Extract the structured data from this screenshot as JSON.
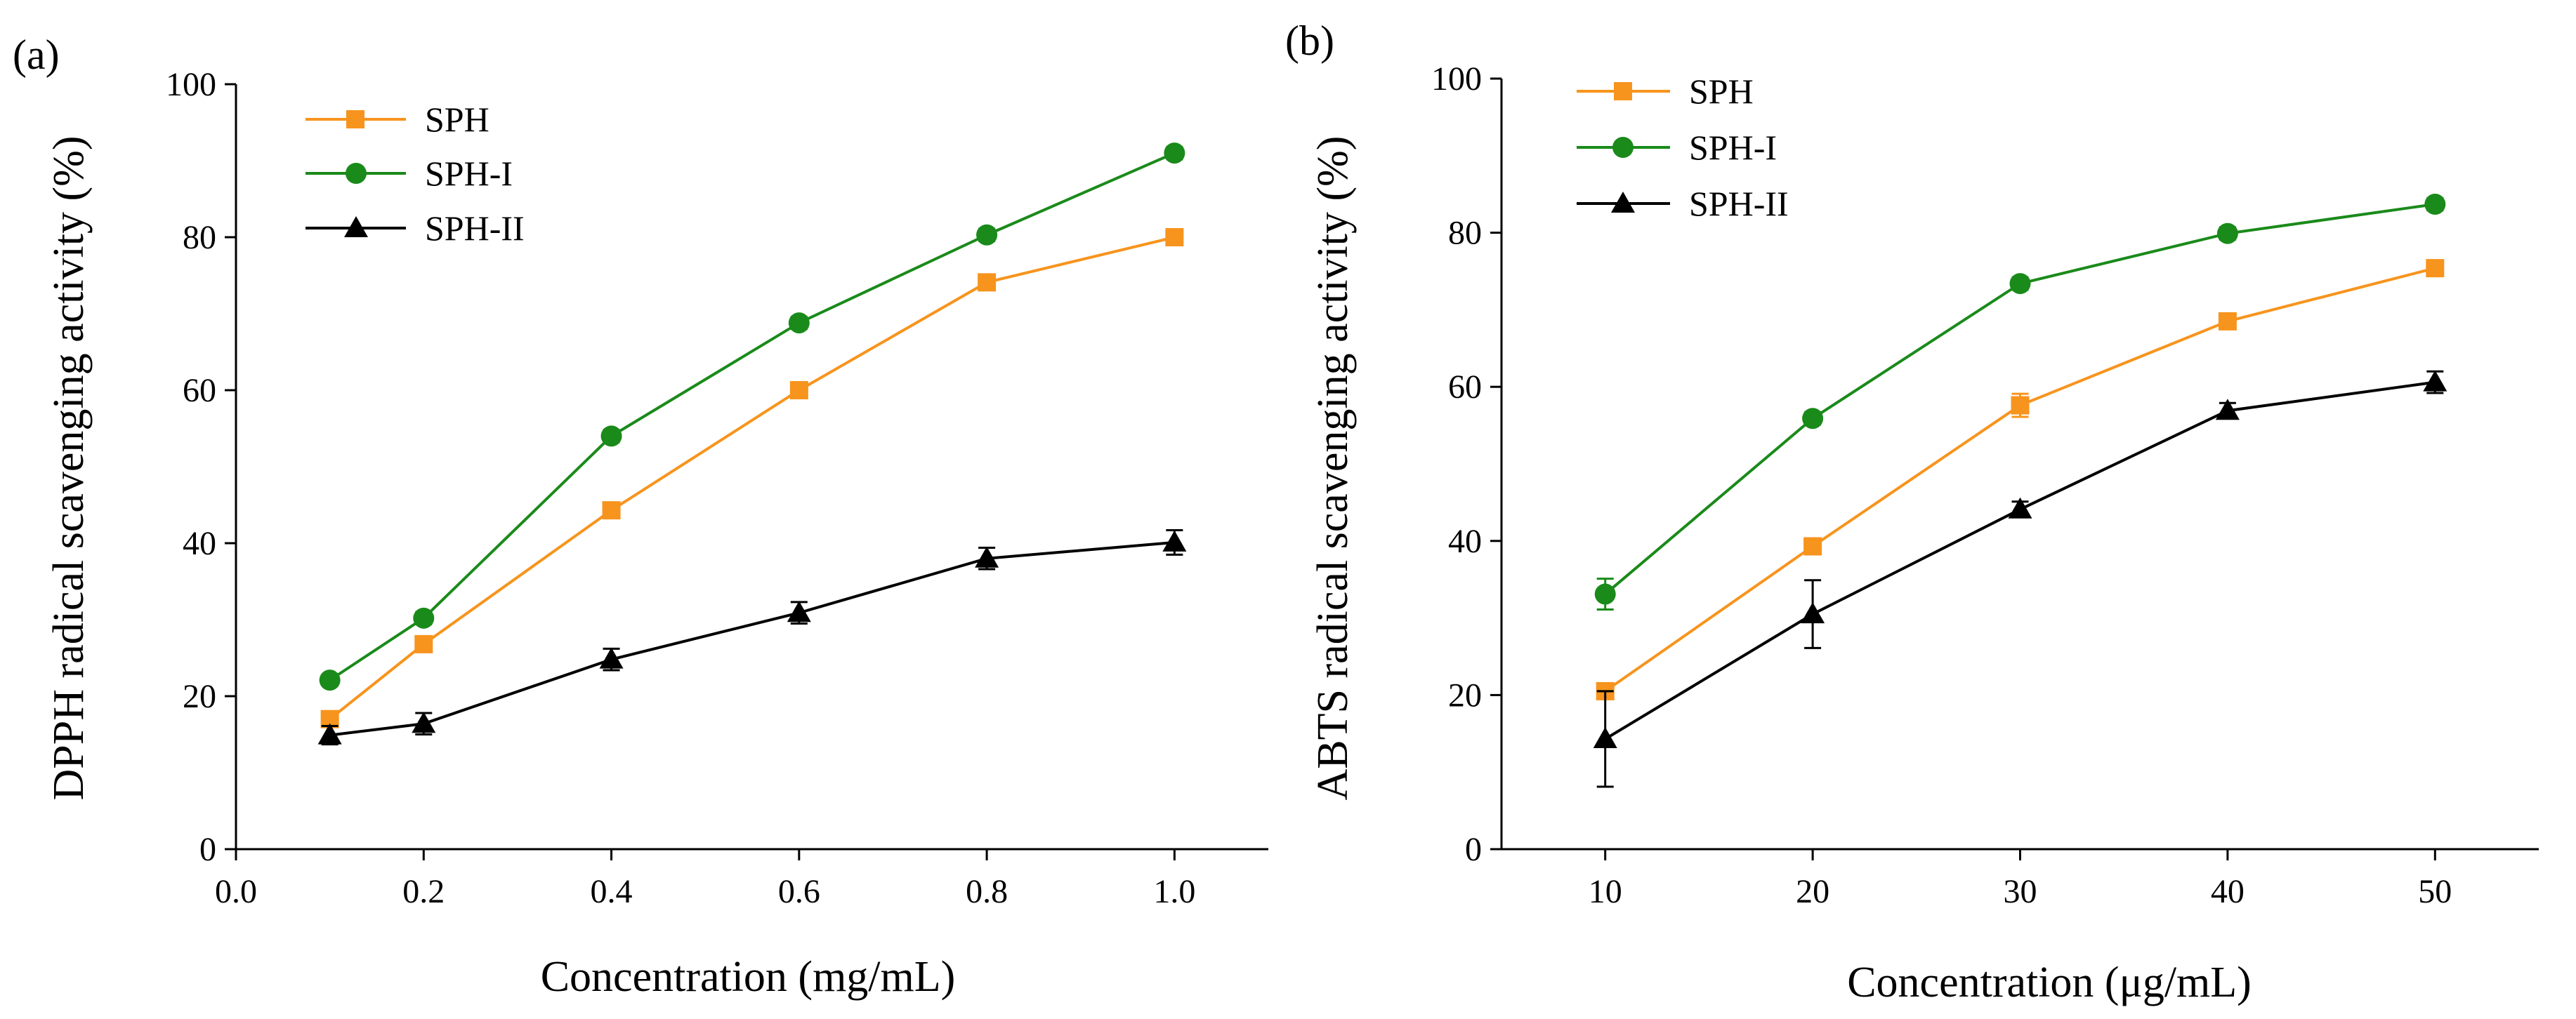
{
  "chart_data": [
    {
      "panel_label": "(a)",
      "type": "line",
      "xlabel": "Concentration (mg/mL)",
      "ylabel": "DPPH radical scavenging activity (%)",
      "xlim": [
        0.0,
        1.1
      ],
      "ylim": [
        0,
        100
      ],
      "xticks": [
        0.0,
        0.2,
        0.4,
        0.6,
        0.8,
        1.0
      ],
      "xtick_labels": [
        "0.0",
        "0.2",
        "0.4",
        "0.6",
        "0.8",
        "1.0"
      ],
      "yticks": [
        0,
        20,
        40,
        60,
        80,
        100
      ],
      "ytick_labels": [
        "0",
        "20",
        "40",
        "60",
        "80",
        "100"
      ],
      "legend_position": "top-left",
      "grid": false,
      "series": [
        {
          "name": "SPH",
          "color": "#F7941D",
          "marker": "square",
          "x": [
            0.1,
            0.2,
            0.4,
            0.6,
            0.8,
            1.0
          ],
          "values": [
            17.0,
            26.8,
            44.3,
            60.0,
            74.1,
            80.0
          ],
          "errors": [
            0.6,
            0.8,
            0.8,
            0.8,
            0.8,
            0.8
          ]
        },
        {
          "name": "SPH-I",
          "color": "#1A8A1A",
          "marker": "circle",
          "x": [
            0.1,
            0.2,
            0.4,
            0.6,
            0.8,
            1.0
          ],
          "values": [
            22.1,
            30.2,
            54.0,
            68.8,
            80.3,
            91.0
          ],
          "errors": [
            0.6,
            0.8,
            0.8,
            0.8,
            0.8,
            0.8
          ]
        },
        {
          "name": "SPH-II",
          "color": "#000000",
          "marker": "triangle",
          "x": [
            0.1,
            0.2,
            0.4,
            0.6,
            0.8,
            1.0
          ],
          "values": [
            14.9,
            16.4,
            24.8,
            30.9,
            38.0,
            40.1
          ],
          "errors": [
            1.2,
            1.4,
            1.4,
            1.4,
            1.4,
            1.6
          ]
        }
      ]
    },
    {
      "panel_label": "(b)",
      "type": "line",
      "xlabel": "Concentration (μg/mL)",
      "ylabel": "ABTS radical scavenging activity (%)",
      "xlim": [
        5,
        55
      ],
      "ylim": [
        0,
        100
      ],
      "xticks": [
        10,
        20,
        30,
        40,
        50
      ],
      "xtick_labels": [
        "10",
        "20",
        "30",
        "40",
        "50"
      ],
      "yticks": [
        0,
        20,
        40,
        60,
        80,
        100
      ],
      "ytick_labels": [
        "0",
        "20",
        "40",
        "60",
        "80",
        "100"
      ],
      "legend_position": "top-left",
      "grid": false,
      "series": [
        {
          "name": "SPH",
          "color": "#F7941D",
          "marker": "square",
          "x": [
            10,
            20,
            30,
            40,
            50
          ],
          "values": [
            20.5,
            39.3,
            57.6,
            68.5,
            75.4
          ],
          "errors": [
            0.8,
            0.8,
            1.5,
            0.8,
            0.8
          ]
        },
        {
          "name": "SPH-I",
          "color": "#1A8A1A",
          "marker": "circle",
          "x": [
            10,
            20,
            30,
            40,
            50
          ],
          "values": [
            33.1,
            55.9,
            73.4,
            79.9,
            83.7
          ],
          "errors": [
            2.0,
            0.8,
            0.8,
            0.8,
            0.8
          ]
        },
        {
          "name": "SPH-II",
          "color": "#000000",
          "marker": "triangle",
          "x": [
            10,
            20,
            30,
            40,
            50
          ],
          "values": [
            14.3,
            30.5,
            44.1,
            56.9,
            60.6
          ],
          "errors": [
            6.2,
            4.4,
            1.0,
            1.0,
            1.4
          ]
        }
      ]
    }
  ]
}
